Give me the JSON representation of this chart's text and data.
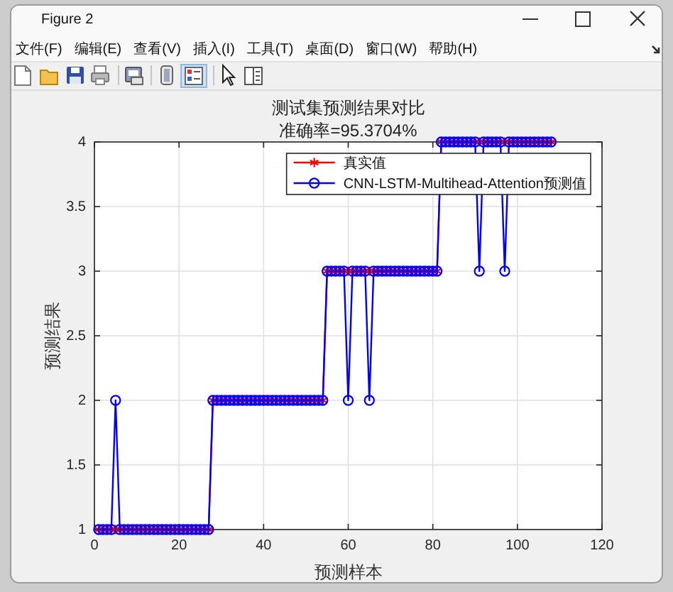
{
  "chart_data": {
    "type": "line",
    "title": "测试集预测结果对比",
    "subtitle": "准确率=95.3704%",
    "xlabel": "预测样本",
    "ylabel": "预测结果",
    "x": [
      1,
      2,
      3,
      4,
      5,
      6,
      7,
      8,
      9,
      10,
      11,
      12,
      13,
      14,
      15,
      16,
      17,
      18,
      19,
      20,
      21,
      22,
      23,
      24,
      25,
      26,
      27,
      28,
      29,
      30,
      31,
      32,
      33,
      34,
      35,
      36,
      37,
      38,
      39,
      40,
      41,
      42,
      43,
      44,
      45,
      46,
      47,
      48,
      49,
      50,
      51,
      52,
      53,
      54,
      55,
      56,
      57,
      58,
      59,
      60,
      61,
      62,
      63,
      64,
      65,
      66,
      67,
      68,
      69,
      70,
      71,
      72,
      73,
      74,
      75,
      76,
      77,
      78,
      79,
      80,
      81,
      82,
      83,
      84,
      85,
      86,
      87,
      88,
      89,
      90,
      91,
      92,
      93,
      94,
      95,
      96,
      97,
      98,
      99,
      100,
      101,
      102,
      103,
      104,
      105,
      106,
      107,
      108
    ],
    "series": [
      {
        "name": "真实值",
        "color": "#ff0000",
        "marker": "cross",
        "values": [
          1,
          1,
          1,
          1,
          1,
          1,
          1,
          1,
          1,
          1,
          1,
          1,
          1,
          1,
          1,
          1,
          1,
          1,
          1,
          1,
          1,
          1,
          1,
          1,
          1,
          1,
          1,
          2,
          2,
          2,
          2,
          2,
          2,
          2,
          2,
          2,
          2,
          2,
          2,
          2,
          2,
          2,
          2,
          2,
          2,
          2,
          2,
          2,
          2,
          2,
          2,
          2,
          2,
          2,
          3,
          3,
          3,
          3,
          3,
          3,
          3,
          3,
          3,
          3,
          3,
          3,
          3,
          3,
          3,
          3,
          3,
          3,
          3,
          3,
          3,
          3,
          3,
          3,
          3,
          3,
          3,
          4,
          4,
          4,
          4,
          4,
          4,
          4,
          4,
          4,
          4,
          4,
          4,
          4,
          4,
          4,
          4,
          4,
          4,
          4,
          4,
          4,
          4,
          4,
          4,
          4,
          4,
          4
        ]
      },
      {
        "name": "CNN-LSTM-Multihead-Attention预测值",
        "color": "#0000ff",
        "marker": "circle",
        "values": [
          1,
          1,
          1,
          1,
          2,
          1,
          1,
          1,
          1,
          1,
          1,
          1,
          1,
          1,
          1,
          1,
          1,
          1,
          1,
          1,
          1,
          1,
          1,
          1,
          1,
          1,
          1,
          2,
          2,
          2,
          2,
          2,
          2,
          2,
          2,
          2,
          2,
          2,
          2,
          2,
          2,
          2,
          2,
          2,
          2,
          2,
          2,
          2,
          2,
          2,
          2,
          2,
          2,
          2,
          3,
          3,
          3,
          3,
          3,
          2,
          3,
          3,
          3,
          3,
          2,
          3,
          3,
          3,
          3,
          3,
          3,
          3,
          3,
          3,
          3,
          3,
          3,
          3,
          3,
          3,
          3,
          4,
          4,
          4,
          4,
          4,
          4,
          4,
          4,
          4,
          3,
          4,
          4,
          4,
          4,
          4,
          3,
          4,
          4,
          4,
          4,
          4,
          4,
          4,
          4,
          4,
          4,
          4
        ]
      }
    ],
    "xlim": [
      0,
      120
    ],
    "xticks": [
      0,
      20,
      40,
      60,
      80,
      100,
      120
    ],
    "ylim": [
      1,
      4
    ],
    "yticks": [
      1,
      1.5,
      2,
      2.5,
      3,
      3.5,
      4
    ],
    "grid": true,
    "legend": "top right",
    "line_style": "solid",
    "annotations": [
      "Figure 2",
      "文件(F)",
      "编辑(E)",
      "查看(V)",
      "插入(I)",
      "工具(T)",
      "桌面(D)",
      "窗口(W)",
      "帮助(H)"
    ]
  }
}
